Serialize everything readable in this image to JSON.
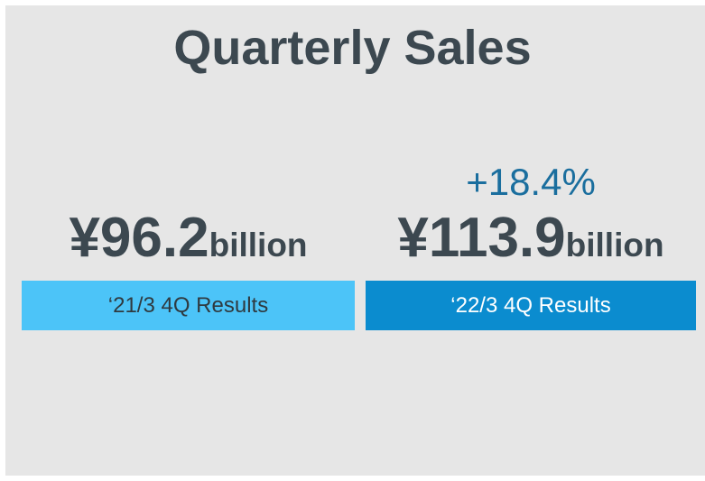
{
  "title": "Quarterly Sales",
  "change": "+18.4%",
  "results": [
    {
      "amount": "¥96.2",
      "unit": "billion",
      "label": "‘21/3 4Q Results"
    },
    {
      "amount": "¥113.9",
      "unit": "billion",
      "label": "‘22/3 4Q Results"
    }
  ]
}
